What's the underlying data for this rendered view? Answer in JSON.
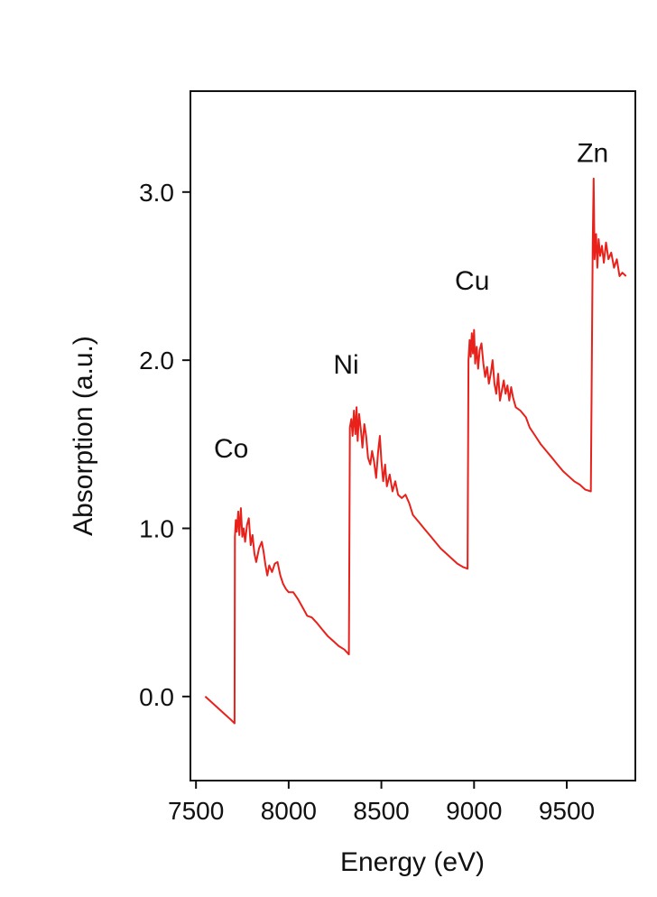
{
  "chart_data": {
    "type": "line",
    "title": "",
    "xlabel": "Energy (eV)",
    "ylabel": "Absorption (a.u.)",
    "xlim": [
      7470,
      9870
    ],
    "ylim": [
      -0.5,
      3.6
    ],
    "xticks": [
      7500,
      8000,
      8500,
      9000,
      9500
    ],
    "yticks": [
      {
        "value": 0.0,
        "label": "0.0"
      },
      {
        "value": 1.0,
        "label": "1.0"
      },
      {
        "value": 2.0,
        "label": "2.0"
      },
      {
        "value": 3.0,
        "label": "3.0"
      }
    ],
    "grid": false,
    "legend": "none",
    "series": [
      {
        "color": "#e8211b",
        "points": [
          [
            7550,
            0.0
          ],
          [
            7600,
            -0.05
          ],
          [
            7650,
            -0.1
          ],
          [
            7690,
            -0.14
          ],
          [
            7708,
            -0.16
          ],
          [
            7710,
            0.95
          ],
          [
            7715,
            1.05
          ],
          [
            7720,
            0.98
          ],
          [
            7728,
            1.1
          ],
          [
            7734,
            0.96
          ],
          [
            7742,
            1.12
          ],
          [
            7750,
            0.95
          ],
          [
            7757,
            1.0
          ],
          [
            7765,
            0.92
          ],
          [
            7775,
            1.02
          ],
          [
            7785,
            1.06
          ],
          [
            7795,
            0.9
          ],
          [
            7805,
            0.96
          ],
          [
            7815,
            0.85
          ],
          [
            7825,
            0.8
          ],
          [
            7840,
            0.88
          ],
          [
            7855,
            0.92
          ],
          [
            7865,
            0.86
          ],
          [
            7875,
            0.78
          ],
          [
            7885,
            0.72
          ],
          [
            7895,
            0.78
          ],
          [
            7910,
            0.74
          ],
          [
            7925,
            0.79
          ],
          [
            7940,
            0.8
          ],
          [
            7955,
            0.72
          ],
          [
            7970,
            0.67
          ],
          [
            7985,
            0.64
          ],
          [
            8000,
            0.62
          ],
          [
            8025,
            0.62
          ],
          [
            8050,
            0.58
          ],
          [
            8080,
            0.52
          ],
          [
            8100,
            0.48
          ],
          [
            8125,
            0.47
          ],
          [
            8150,
            0.44
          ],
          [
            8180,
            0.4
          ],
          [
            8210,
            0.36
          ],
          [
            8240,
            0.33
          ],
          [
            8270,
            0.3
          ],
          [
            8300,
            0.28
          ],
          [
            8325,
            0.25
          ],
          [
            8330,
            1.6
          ],
          [
            8338,
            1.65
          ],
          [
            8345,
            1.55
          ],
          [
            8352,
            1.7
          ],
          [
            8360,
            1.56
          ],
          [
            8366,
            1.72
          ],
          [
            8372,
            1.52
          ],
          [
            8380,
            1.68
          ],
          [
            8390,
            1.58
          ],
          [
            8398,
            1.48
          ],
          [
            8408,
            1.62
          ],
          [
            8418,
            1.55
          ],
          [
            8428,
            1.42
          ],
          [
            8440,
            1.38
          ],
          [
            8450,
            1.46
          ],
          [
            8460,
            1.4
          ],
          [
            8472,
            1.3
          ],
          [
            8482,
            1.45
          ],
          [
            8492,
            1.55
          ],
          [
            8500,
            1.4
          ],
          [
            8510,
            1.28
          ],
          [
            8520,
            1.38
          ],
          [
            8530,
            1.25
          ],
          [
            8545,
            1.32
          ],
          [
            8560,
            1.22
          ],
          [
            8575,
            1.28
          ],
          [
            8590,
            1.2
          ],
          [
            8610,
            1.18
          ],
          [
            8630,
            1.2
          ],
          [
            8650,
            1.15
          ],
          [
            8670,
            1.08
          ],
          [
            8700,
            1.04
          ],
          [
            8730,
            1.0
          ],
          [
            8760,
            0.96
          ],
          [
            8790,
            0.92
          ],
          [
            8820,
            0.88
          ],
          [
            8850,
            0.85
          ],
          [
            8880,
            0.82
          ],
          [
            8910,
            0.79
          ],
          [
            8940,
            0.77
          ],
          [
            8965,
            0.76
          ],
          [
            8970,
            2.0
          ],
          [
            8976,
            2.12
          ],
          [
            8982,
            2.02
          ],
          [
            8988,
            2.16
          ],
          [
            8994,
            2.04
          ],
          [
            9000,
            2.18
          ],
          [
            9006,
            1.98
          ],
          [
            9014,
            2.08
          ],
          [
            9022,
            1.95
          ],
          [
            9030,
            2.06
          ],
          [
            9040,
            2.1
          ],
          [
            9050,
            1.98
          ],
          [
            9060,
            1.9
          ],
          [
            9070,
            1.96
          ],
          [
            9080,
            1.86
          ],
          [
            9090,
            1.92
          ],
          [
            9100,
            2.0
          ],
          [
            9110,
            1.86
          ],
          [
            9120,
            1.8
          ],
          [
            9130,
            1.92
          ],
          [
            9140,
            1.76
          ],
          [
            9150,
            1.82
          ],
          [
            9160,
            1.88
          ],
          [
            9170,
            1.8
          ],
          [
            9180,
            1.85
          ],
          [
            9190,
            1.76
          ],
          [
            9200,
            1.84
          ],
          [
            9210,
            1.78
          ],
          [
            9225,
            1.72
          ],
          [
            9250,
            1.7
          ],
          [
            9280,
            1.66
          ],
          [
            9300,
            1.6
          ],
          [
            9330,
            1.55
          ],
          [
            9360,
            1.5
          ],
          [
            9390,
            1.46
          ],
          [
            9420,
            1.42
          ],
          [
            9450,
            1.38
          ],
          [
            9480,
            1.34
          ],
          [
            9510,
            1.31
          ],
          [
            9540,
            1.28
          ],
          [
            9570,
            1.26
          ],
          [
            9600,
            1.23
          ],
          [
            9630,
            1.22
          ],
          [
            9640,
            2.7
          ],
          [
            9645,
            3.08
          ],
          [
            9650,
            2.6
          ],
          [
            9658,
            2.75
          ],
          [
            9665,
            2.55
          ],
          [
            9672,
            2.72
          ],
          [
            9680,
            2.62
          ],
          [
            9690,
            2.68
          ],
          [
            9700,
            2.58
          ],
          [
            9712,
            2.7
          ],
          [
            9725,
            2.6
          ],
          [
            9740,
            2.64
          ],
          [
            9755,
            2.55
          ],
          [
            9770,
            2.6
          ],
          [
            9785,
            2.5
          ],
          [
            9800,
            2.52
          ],
          [
            9820,
            2.5
          ]
        ]
      }
    ],
    "annotations": [
      {
        "text": "Co",
        "x": 7690,
        "y": 1.42
      },
      {
        "text": "Ni",
        "x": 8310,
        "y": 1.92
      },
      {
        "text": "Cu",
        "x": 8990,
        "y": 2.42
      },
      {
        "text": "Zn",
        "x": 9640,
        "y": 3.18
      }
    ]
  }
}
